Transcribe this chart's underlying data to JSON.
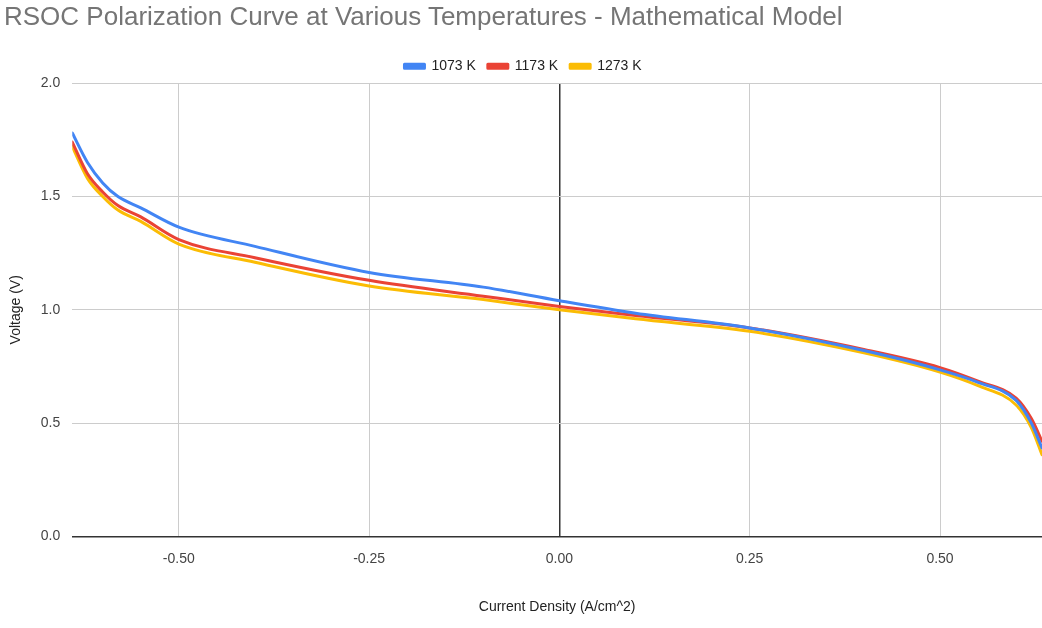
{
  "chart_data": {
    "type": "line",
    "title": "RSOC Polarization Curve at Various Temperatures - Mathematical Model",
    "xlabel": "Current Density (A/cm^2)",
    "ylabel": "Voltage (V)",
    "x": [
      -0.64,
      -0.62,
      -0.6,
      -0.58,
      -0.55,
      -0.5,
      -0.4,
      -0.25,
      -0.1,
      0,
      0.1,
      0.25,
      0.4,
      0.5,
      0.55,
      0.6,
      0.62,
      0.634
    ],
    "series": [
      {
        "name": "1073 K",
        "color": "#4285f4",
        "values": [
          1.78,
          1.65,
          1.56,
          1.5,
          1.45,
          1.365,
          1.28,
          1.165,
          1.1,
          1.04,
          0.985,
          0.92,
          0.82,
          0.735,
          0.68,
          0.6,
          0.5,
          0.39
        ]
      },
      {
        "name": "1173 K",
        "color": "#ea4335",
        "values": [
          1.74,
          1.6,
          1.52,
          1.46,
          1.41,
          1.31,
          1.23,
          1.13,
          1.06,
          1.015,
          0.975,
          0.92,
          0.825,
          0.745,
          0.685,
          0.61,
          0.52,
          0.42
        ]
      },
      {
        "name": "1273 K",
        "color": "#fbbc04",
        "values": [
          1.72,
          1.58,
          1.5,
          1.44,
          1.39,
          1.29,
          1.21,
          1.105,
          1.045,
          1.0,
          0.96,
          0.905,
          0.81,
          0.725,
          0.665,
          0.58,
          0.48,
          0.36
        ]
      }
    ],
    "xlim": [
      -0.64,
      0.634
    ],
    "ylim": [
      0,
      2
    ],
    "xticks": [
      {
        "value": -0.5,
        "label": "-0.50"
      },
      {
        "value": -0.25,
        "label": "-0.25"
      },
      {
        "value": 0,
        "label": "0.00"
      },
      {
        "value": 0.25,
        "label": "0.25"
      },
      {
        "value": 0.5,
        "label": "0.50"
      }
    ],
    "yticks": [
      {
        "value": 0,
        "label": "0.0"
      },
      {
        "value": 0.5,
        "label": "0.5"
      },
      {
        "value": 1,
        "label": "1.0"
      },
      {
        "value": 1.5,
        "label": "1.5"
      },
      {
        "value": 2,
        "label": "2.0"
      }
    ],
    "grid": true,
    "legend": "top",
    "marker": "none",
    "line_style": "solid"
  }
}
